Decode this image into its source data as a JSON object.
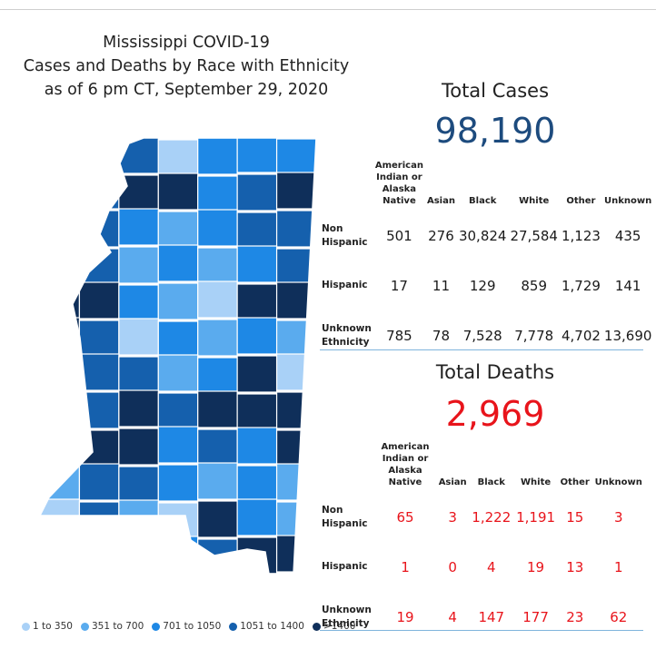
{
  "title": {
    "line1": "Mississippi COVID-19",
    "line2": "Cases and Deaths by Race with Ethnicity",
    "line3": "as of 6 pm CT, September 29, 2020"
  },
  "colors": {
    "bin1": "#a9d1f7",
    "bin2": "#5aabee",
    "bin3": "#1e88e5",
    "bin4": "#1560ad",
    "bin5": "#0f2f5a",
    "cases_text": "#1d4b7e",
    "deaths_text": "#e8141b"
  },
  "legend": [
    {
      "label": "1 to 350",
      "bin": "bin1"
    },
    {
      "label": "351 to 700",
      "bin": "bin2"
    },
    {
      "label": "701 to 1050",
      "bin": "bin3"
    },
    {
      "label": "1051 to 1400",
      "bin": "bin4"
    },
    {
      ">": "",
      "label": ">1400",
      "bin": "bin5"
    }
  ],
  "columns": [
    "American Indian or Alaska Native",
    "Asian",
    "Black",
    "White",
    "Other",
    "Unknown"
  ],
  "cases": {
    "heading": "Total Cases",
    "total": "98,190",
    "rows": [
      {
        "label": "Non Hispanic",
        "values": [
          "501",
          "276",
          "30,824",
          "27,584",
          "1,123",
          "435"
        ]
      },
      {
        "label": "Hispanic",
        "values": [
          "17",
          "11",
          "129",
          "859",
          "1,729",
          "141"
        ]
      },
      {
        "label": "Unknown Ethnicity",
        "values": [
          "785",
          "78",
          "7,528",
          "7,778",
          "4,702",
          "13,690"
        ]
      }
    ]
  },
  "deaths": {
    "heading": "Total Deaths",
    "total": "2,969",
    "rows": [
      {
        "label": "Non Hispanic",
        "values": [
          "65",
          "3",
          "1,222",
          "1,191",
          "15",
          "3"
        ]
      },
      {
        "label": "Hispanic",
        "values": [
          "1",
          "0",
          "4",
          "19",
          "13",
          "1"
        ]
      },
      {
        "label": "Unknown Ethnicity",
        "values": [
          "19",
          "4",
          "147",
          "177",
          "23",
          "62"
        ]
      }
    ]
  },
  "map": {
    "state": "Mississippi",
    "county_bins": [
      "bin5",
      "bin2",
      "bin4",
      "bin1",
      "bin3",
      "bin3",
      "bin3",
      "bin3",
      "bin4",
      "bin5",
      "bin5",
      "bin3",
      "bin4",
      "bin5",
      "bin4",
      "bin4",
      "bin3",
      "bin2",
      "bin3",
      "bin4",
      "bin4",
      "bin5",
      "bin4",
      "bin2",
      "bin3",
      "bin2",
      "bin3",
      "bin4",
      "bin5",
      "bin5",
      "bin3",
      "bin2",
      "bin1",
      "bin5",
      "bin5",
      "bin5",
      "bin4",
      "bin1",
      "bin3",
      "bin2",
      "bin3",
      "bin2",
      "bin1",
      "bin4",
      "bin4",
      "bin2",
      "bin3",
      "bin5",
      "bin1",
      "bin2",
      "bin4",
      "bin5",
      "bin4",
      "bin5",
      "bin5",
      "bin5",
      "bin1",
      "bin5",
      "bin5",
      "bin3",
      "bin4",
      "bin3",
      "bin5",
      "bin2",
      "bin4",
      "bin4",
      "bin3",
      "bin2",
      "bin3",
      "bin2",
      "bin1",
      "bin4",
      "bin2",
      "bin1",
      "bin5",
      "bin3",
      "bin2",
      "bin1",
      "bin2",
      "bin4",
      "bin3",
      "bin4",
      "bin5",
      "bin5"
    ]
  }
}
